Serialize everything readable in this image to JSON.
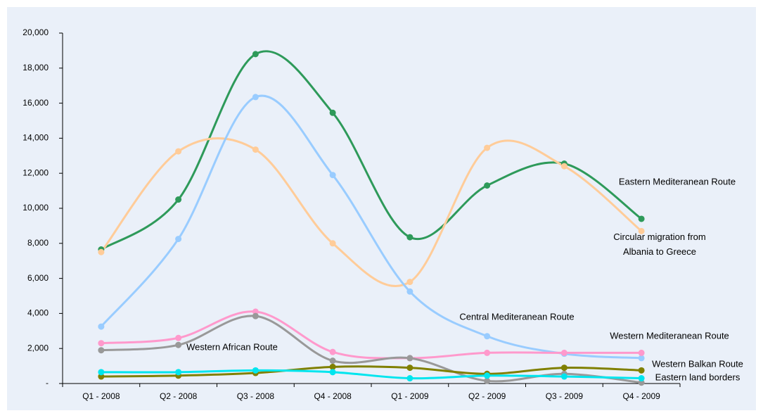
{
  "chart_data": {
    "type": "line",
    "categories": [
      "Q1 - 2008",
      "Q2 - 2008",
      "Q3 - 2008",
      "Q4 - 2008",
      "Q1 - 2009",
      "Q2 - 2009",
      "Q3 - 2009",
      "Q4 - 2009"
    ],
    "series": [
      {
        "name": "Eastern Mediteranean Route",
        "color": "#2e9a5a",
        "values": [
          7650,
          10500,
          18800,
          15450,
          8350,
          11300,
          12550,
          9400
        ]
      },
      {
        "name": "Circular migration from Albania to Greece",
        "color": "#ffcc99",
        "values": [
          7500,
          13250,
          13350,
          8000,
          5800,
          13450,
          12400,
          8700
        ]
      },
      {
        "name": "Central Mediteranean Route",
        "color": "#99ccff",
        "values": [
          3250,
          8250,
          16350,
          11900,
          5250,
          2700,
          1700,
          1450
        ]
      },
      {
        "name": "Western Mediteranean Route",
        "color": "#ff99cc",
        "values": [
          2300,
          2600,
          4100,
          1800,
          1450,
          1750,
          1750,
          1750
        ]
      },
      {
        "name": "Western African Route",
        "color": "#999999",
        "values": [
          1900,
          2200,
          3850,
          1300,
          1450,
          150,
          550,
          50
        ]
      },
      {
        "name": "Western Balkan Route",
        "color": "#808000",
        "values": [
          400,
          450,
          600,
          950,
          900,
          550,
          900,
          750
        ]
      },
      {
        "name": "Eastern land borders",
        "color": "#00e5ee",
        "values": [
          650,
          650,
          750,
          650,
          300,
          450,
          400,
          300
        ]
      }
    ],
    "ylim": [
      0,
      20000
    ],
    "yticks": [
      {
        "value": 0,
        "label": "-"
      },
      {
        "value": 2000,
        "label": "2,000"
      },
      {
        "value": 4000,
        "label": "4,000"
      },
      {
        "value": 6000,
        "label": "6,000"
      },
      {
        "value": 8000,
        "label": "8,000"
      },
      {
        "value": 10000,
        "label": "10,000"
      },
      {
        "value": 12000,
        "label": "12,000"
      },
      {
        "value": 14000,
        "label": "14,000"
      },
      {
        "value": 16000,
        "label": "16,000"
      },
      {
        "value": 18000,
        "label": "18,000"
      },
      {
        "value": 20000,
        "label": "20,000"
      }
    ]
  }
}
